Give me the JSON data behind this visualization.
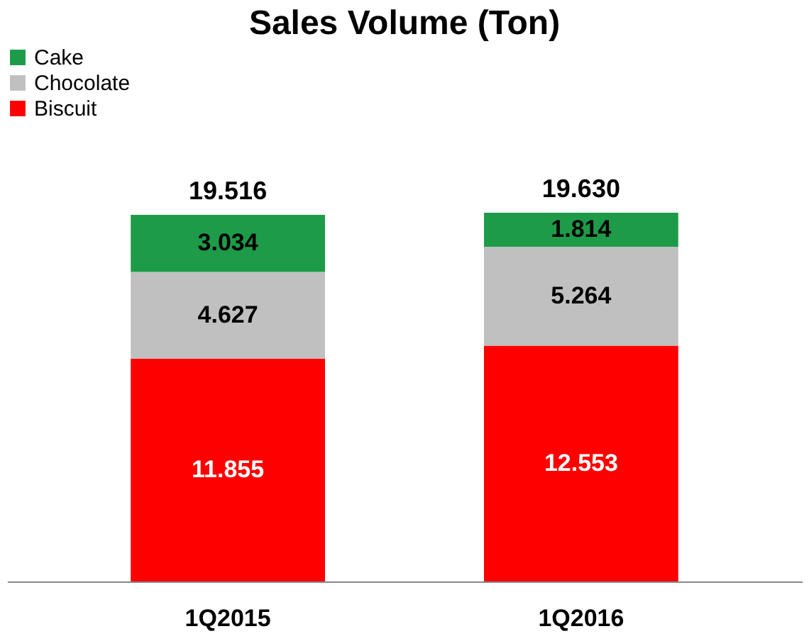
{
  "chart_data": {
    "type": "bar",
    "title": "Sales Volume (Ton)",
    "stacked": true,
    "data_labels": true,
    "legend": "top left",
    "categories": [
      "1Q2015",
      "1Q2016"
    ],
    "series": [
      {
        "name": "Biscuit",
        "color": "#ff0000",
        "values": [
          11.855,
          12.553
        ]
      },
      {
        "name": "Chocolate",
        "color": "#c0c0c0",
        "values": [
          4.627,
          5.264
        ]
      },
      {
        "name": "Cake",
        "color": "#1e9b48",
        "values": [
          3.034,
          1.814
        ]
      }
    ],
    "totals": [
      "19.516",
      "19.630"
    ]
  }
}
